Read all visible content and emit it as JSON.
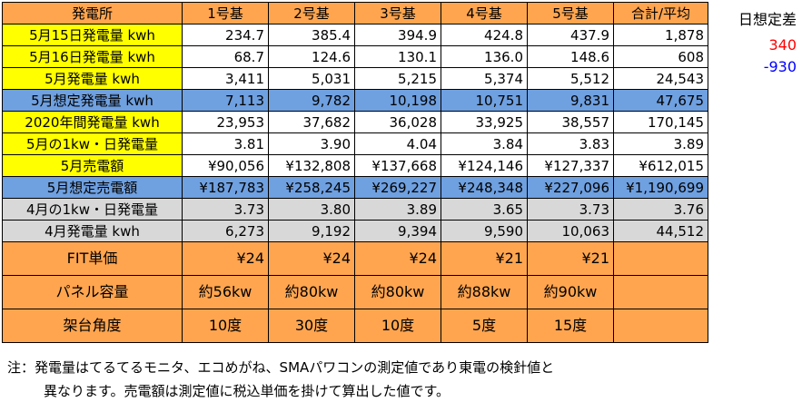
{
  "colors": {
    "header": "#ffa54f",
    "yellow": "#ffff00",
    "blue": "#6fa0e0",
    "gray": "#d8d8d8",
    "white": "#ffffff",
    "positive": "#ff0000",
    "negative": "#0000ff"
  },
  "columns": [
    "発電所",
    "1号基",
    "2号基",
    "3号基",
    "4号基",
    "5号基",
    "合計/平均"
  ],
  "rows": [
    {
      "label": "5月15日発電量 kwh",
      "color": "yellow",
      "values": [
        "234.7",
        "385.4",
        "394.9",
        "424.8",
        "437.9",
        "1,878"
      ]
    },
    {
      "label": "5月16日発電量 kwh",
      "color": "yellow",
      "values": [
        "68.7",
        "124.6",
        "130.1",
        "136.0",
        "148.6",
        "608"
      ]
    },
    {
      "label": "5月発電量 kwh",
      "color": "yellow",
      "values": [
        "3,411",
        "5,031",
        "5,215",
        "5,374",
        "5,512",
        "24,543"
      ]
    },
    {
      "label": "5月想定発電量 kwh",
      "color": "blue",
      "values": [
        "7,113",
        "9,782",
        "10,198",
        "10,751",
        "9,831",
        "47,675"
      ]
    },
    {
      "label": "2020年間発電量 kwh",
      "color": "yellow",
      "values": [
        "23,953",
        "37,682",
        "36,028",
        "33,925",
        "38,557",
        "170,145"
      ]
    },
    {
      "label": "5月の1kw・日発電量",
      "color": "yellow",
      "values": [
        "3.81",
        "3.90",
        "4.04",
        "3.84",
        "3.83",
        "3.89"
      ]
    },
    {
      "label": "5月売電額",
      "color": "yellow",
      "values": [
        "¥90,056",
        "¥132,808",
        "¥137,668",
        "¥124,146",
        "¥127,337",
        "¥612,015"
      ]
    },
    {
      "label": "5月想定売電額",
      "color": "blue",
      "values": [
        "¥187,783",
        "¥258,245",
        "¥269,227",
        "¥248,348",
        "¥227,096",
        "¥1,190,699"
      ]
    },
    {
      "label": "4月の1kw・日発電量",
      "color": "gray",
      "values": [
        "3.73",
        "3.80",
        "3.89",
        "3.65",
        "3.73",
        "3.76"
      ]
    },
    {
      "label": "4月発電量 kwh",
      "color": "gray",
      "values": [
        "6,273",
        "9,192",
        "9,394",
        "9,590",
        "10,063",
        "44,512"
      ]
    },
    {
      "label": "FIT単価",
      "color": "header",
      "big": true,
      "align": "right",
      "values": [
        "¥24",
        "¥24",
        "¥24",
        "¥21",
        "¥21",
        ""
      ]
    },
    {
      "label": "パネル容量",
      "color": "header",
      "big": true,
      "align": "center",
      "values": [
        "約56kw",
        "約80kw",
        "約80kw",
        "約88kw",
        "約90kw",
        ""
      ]
    },
    {
      "label": "架台角度",
      "color": "header",
      "big": true,
      "align": "center",
      "values": [
        "10度",
        "30度",
        "10度",
        "5度",
        "15度",
        ""
      ]
    }
  ],
  "side": {
    "title": "日想定差",
    "day15_diff": "340",
    "day16_diff": "-930"
  },
  "note": {
    "line1": "注：発電量はてるてるモニタ、エコめがね、SMAパワコンの測定値であり東電の検針値と",
    "line2": "異なります。売電額は測定値に税込単価を掛けて算出した値です。"
  }
}
